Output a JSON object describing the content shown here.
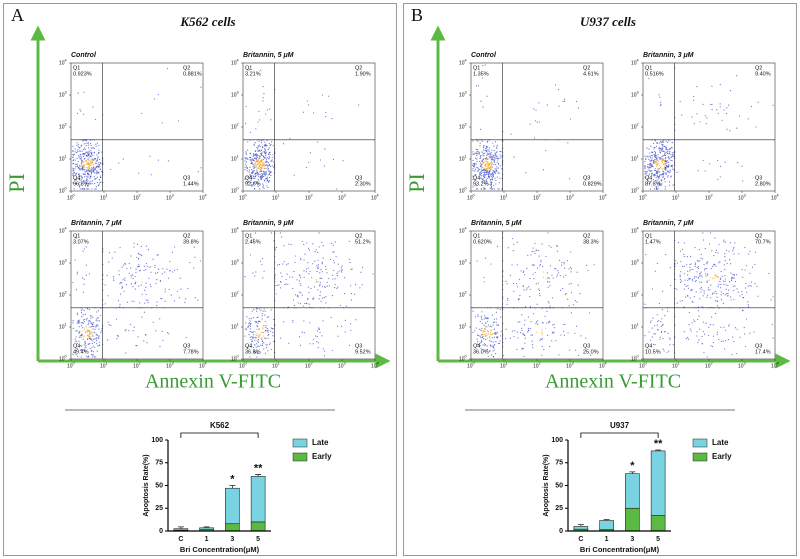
{
  "panels": [
    {
      "label": "A",
      "title": "K562 cells",
      "y_axis_label": "PI",
      "x_axis_label": "Annexin V-FITC",
      "tick_base": "10",
      "tick_exponents": [
        0,
        1,
        2,
        3,
        4
      ],
      "plots": [
        {
          "title": "Control",
          "quadrants": [
            {
              "name": "Q1",
              "value": "0.923%"
            },
            {
              "name": "Q2",
              "value": "0.881%"
            },
            {
              "name": "Q3",
              "value": "1.44%"
            },
            {
              "name": "Q4",
              "value": "96.8%"
            }
          ]
        },
        {
          "title": "Britannin, 5 μM",
          "quadrants": [
            {
              "name": "Q1",
              "value": "3.21%"
            },
            {
              "name": "Q2",
              "value": "1.90%"
            },
            {
              "name": "Q3",
              "value": "2.30%"
            },
            {
              "name": "Q4",
              "value": "92.6%"
            }
          ]
        },
        {
          "title": "Britannin, 7 μM",
          "quadrants": [
            {
              "name": "Q1",
              "value": "3.07%"
            },
            {
              "name": "Q2",
              "value": "39.8%"
            },
            {
              "name": "Q3",
              "value": "7.78%"
            },
            {
              "name": "Q4",
              "value": "49.4%"
            }
          ]
        },
        {
          "title": "Britannin, 9 μM",
          "quadrants": [
            {
              "name": "Q1",
              "value": "2.46%"
            },
            {
              "name": "Q2",
              "value": "51.2%"
            },
            {
              "name": "Q3",
              "value": "9.52%"
            },
            {
              "name": "Q4",
              "value": "36.8%"
            }
          ]
        }
      ],
      "chart_data": {
        "type": "bar",
        "stacked": true,
        "group_label": "K562",
        "ylabel": "Apoptosis Rate(%)",
        "xlabel": "Bri Concentration(μM)",
        "categories": [
          "C",
          "1",
          "3",
          "5"
        ],
        "ylim": [
          0,
          100
        ],
        "yticks": [
          0,
          25,
          50,
          75,
          100
        ],
        "series": [
          {
            "name": "Early",
            "color": "#5cb944",
            "values": [
              1,
              1.5,
              8,
              10
            ]
          },
          {
            "name": "Late",
            "color": "#79d3e0",
            "values": [
              1.5,
              2,
              39,
              50
            ],
            "errors": [
              2,
              1,
              3,
              2
            ]
          }
        ],
        "annotations": [
          {
            "category": "3",
            "text": "*"
          },
          {
            "category": "5",
            "text": "**"
          }
        ]
      }
    },
    {
      "label": "B",
      "title": "U937 cells",
      "y_axis_label": "PI",
      "x_axis_label": "Annexin V-FITC",
      "tick_base": "10",
      "tick_exponents": [
        0,
        1,
        2,
        3,
        4
      ],
      "plots": [
        {
          "title": "Control",
          "quadrants": [
            {
              "name": "Q1",
              "value": "1.35%"
            },
            {
              "name": "Q2",
              "value": "4.61%"
            },
            {
              "name": "Q3",
              "value": "0.829%"
            },
            {
              "name": "Q4",
              "value": "93.2%"
            }
          ]
        },
        {
          "title": "Britannin, 3 μM",
          "quadrants": [
            {
              "name": "Q1",
              "value": "0.516%"
            },
            {
              "name": "Q2",
              "value": "9.40%"
            },
            {
              "name": "Q3",
              "value": "2.80%"
            },
            {
              "name": "Q4",
              "value": "87.3%"
            }
          ]
        },
        {
          "title": "Britannin, 5 μM",
          "quadrants": [
            {
              "name": "Q1",
              "value": "0.620%"
            },
            {
              "name": "Q2",
              "value": "38.3%"
            },
            {
              "name": "Q3",
              "value": "25.0%"
            },
            {
              "name": "Q4",
              "value": "36.0%"
            }
          ]
        },
        {
          "title": "Britannin, 7 μM",
          "quadrants": [
            {
              "name": "Q1",
              "value": "1.47%"
            },
            {
              "name": "Q2",
              "value": "70.7%"
            },
            {
              "name": "Q3",
              "value": "17.4%"
            },
            {
              "name": "Q4",
              "value": "10.5%"
            }
          ]
        }
      ],
      "chart_data": {
        "type": "bar",
        "stacked": true,
        "group_label": "U937",
        "ylabel": "Apoptosis Rate(%)",
        "xlabel": "Bri Concentration(μM)",
        "categories": [
          "C",
          "1",
          "3",
          "5"
        ],
        "ylim": [
          0,
          100
        ],
        "yticks": [
          0,
          25,
          50,
          75,
          100
        ],
        "series": [
          {
            "name": "Early",
            "color": "#5cb944",
            "values": [
              2,
              1.5,
              25,
              17
            ]
          },
          {
            "name": "Late",
            "color": "#79d3e0",
            "values": [
              3,
              10,
              38,
              71
            ],
            "errors": [
              2,
              1,
              2,
              1
            ]
          }
        ],
        "annotations": [
          {
            "category": "3",
            "text": "*"
          },
          {
            "category": "5",
            "text": "**"
          }
        ]
      }
    }
  ]
}
